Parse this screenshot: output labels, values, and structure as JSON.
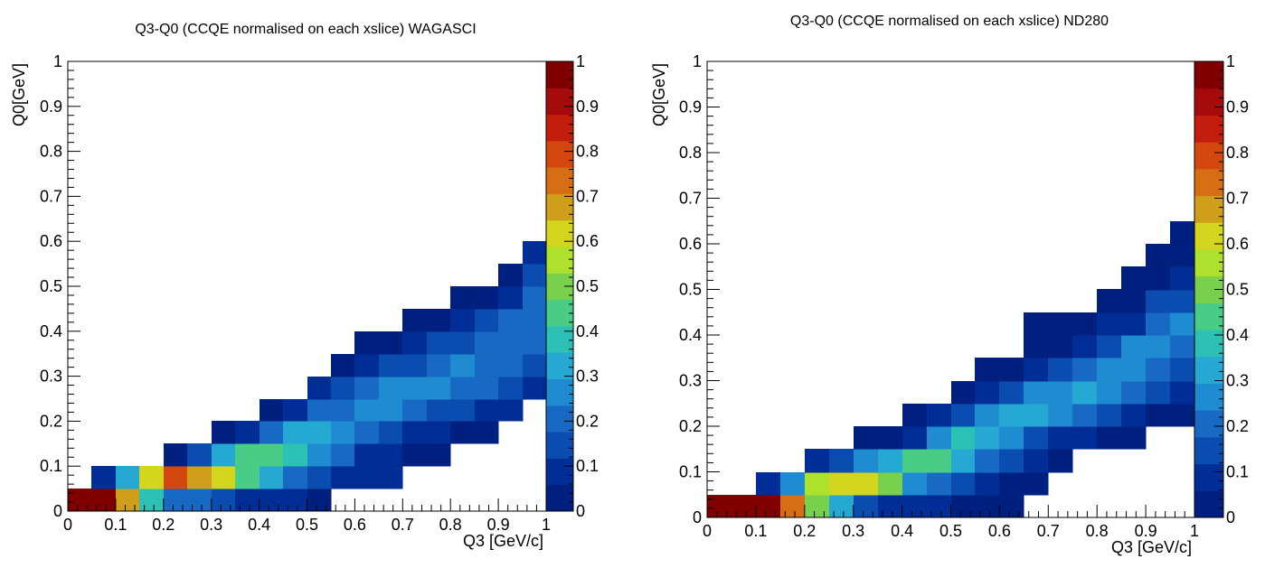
{
  "chart_data": [
    {
      "type": "heatmap",
      "title": "Q3-Q0 (CCQE normalised on each xslice) WAGASCI",
      "xlabel": "Q3 [GeV/c]",
      "ylabel": "Q0[GeV]",
      "xlim": [
        0,
        1
      ],
      "ylim": [
        0,
        1
      ],
      "x_ticks": [
        "0",
        "0.1",
        "0.2",
        "0.3",
        "0.4",
        "0.5",
        "0.6",
        "0.7",
        "0.8",
        "0.9",
        "1"
      ],
      "y_ticks": [
        "0",
        "0.1",
        "0.2",
        "0.3",
        "0.4",
        "0.5",
        "0.6",
        "0.7",
        "0.8",
        "0.9",
        "1"
      ],
      "colorbar_ticks": [
        "0",
        "0.1",
        "0.2",
        "0.3",
        "0.4",
        "0.5",
        "0.6",
        "0.7",
        "0.8",
        "0.9",
        "1"
      ],
      "zlim": [
        0,
        1
      ],
      "bin_width": 0.05,
      "grid": false,
      "colorbar": "right",
      "columns": [
        {
          "x": 0.0,
          "y_start": 0.0,
          "values": [
            0.98
          ]
        },
        {
          "x": 0.05,
          "y_start": 0.0,
          "values": [
            0.98,
            0.06
          ]
        },
        {
          "x": 0.1,
          "y_start": 0.0,
          "values": [
            0.7,
            0.33
          ]
        },
        {
          "x": 0.15,
          "y_start": 0.0,
          "values": [
            0.4,
            0.62
          ]
        },
        {
          "x": 0.2,
          "y_start": 0.0,
          "values": [
            0.22,
            0.78,
            0.04
          ]
        },
        {
          "x": 0.25,
          "y_start": 0.0,
          "values": [
            0.18,
            0.7,
            0.12
          ]
        },
        {
          "x": 0.3,
          "y_start": 0.0,
          "values": [
            0.12,
            0.62,
            0.33,
            0.04
          ]
        },
        {
          "x": 0.35,
          "y_start": 0.0,
          "values": [
            0.09,
            0.44,
            0.42,
            0.09
          ]
        },
        {
          "x": 0.4,
          "y_start": 0.0,
          "values": [
            0.08,
            0.33,
            0.42,
            0.2,
            0.04
          ]
        },
        {
          "x": 0.45,
          "y_start": 0.0,
          "values": [
            0.07,
            0.23,
            0.36,
            0.33,
            0.1
          ]
        },
        {
          "x": 0.5,
          "y_start": 0.0,
          "values": [
            0.05,
            0.14,
            0.27,
            0.33,
            0.2,
            0.07
          ]
        },
        {
          "x": 0.55,
          "y_start": 0.05,
          "values": [
            0.09,
            0.18,
            0.28,
            0.23,
            0.12,
            0.04
          ]
        },
        {
          "x": 0.6,
          "y_start": 0.05,
          "values": [
            0.06,
            0.1,
            0.21,
            0.28,
            0.21,
            0.08,
            0.03
          ]
        },
        {
          "x": 0.65,
          "y_start": 0.05,
          "values": [
            0.06,
            0.08,
            0.14,
            0.28,
            0.24,
            0.14,
            0.04
          ]
        },
        {
          "x": 0.7,
          "y_start": 0.1,
          "values": [
            0.04,
            0.1,
            0.22,
            0.27,
            0.17,
            0.09,
            0.03
          ]
        },
        {
          "x": 0.75,
          "y_start": 0.1,
          "values": [
            0.04,
            0.08,
            0.17,
            0.24,
            0.21,
            0.13,
            0.05
          ]
        },
        {
          "x": 0.8,
          "y_start": 0.15,
          "values": [
            0.04,
            0.12,
            0.2,
            0.24,
            0.16,
            0.08,
            0.03
          ]
        },
        {
          "x": 0.85,
          "y_start": 0.15,
          "values": [
            0.04,
            0.1,
            0.18,
            0.23,
            0.21,
            0.12,
            0.04
          ]
        },
        {
          "x": 0.9,
          "y_start": 0.2,
          "values": [
            0.06,
            0.13,
            0.18,
            0.22,
            0.2,
            0.08,
            0.04
          ]
        },
        {
          "x": 0.95,
          "y_start": 0.25,
          "values": [
            0.07,
            0.14,
            0.21,
            0.22,
            0.22,
            0.14,
            0.07
          ]
        }
      ]
    },
    {
      "type": "heatmap",
      "title": "Q3-Q0 (CCQE normalised on each xslice) ND280",
      "xlabel": "Q3 [GeV/c]",
      "ylabel": "Q0[GeV]",
      "xlim": [
        0,
        1
      ],
      "ylim": [
        0,
        1
      ],
      "x_ticks": [
        "0",
        "0.1",
        "0.2",
        "0.3",
        "0.4",
        "0.5",
        "0.6",
        "0.7",
        "0.8",
        "0.9",
        "1"
      ],
      "y_ticks": [
        "0",
        "0.1",
        "0.2",
        "0.3",
        "0.4",
        "0.5",
        "0.6",
        "0.7",
        "0.8",
        "0.9",
        "1"
      ],
      "colorbar_ticks": [
        "0",
        "0.1",
        "0.2",
        "0.3",
        "0.4",
        "0.5",
        "0.6",
        "0.7",
        "0.8",
        "0.9",
        "1"
      ],
      "zlim": [
        0,
        1
      ],
      "bin_width": 0.05,
      "grid": false,
      "colorbar": "right",
      "columns": [
        {
          "x": 0.0,
          "y_start": 0.0,
          "values": [
            0.98
          ]
        },
        {
          "x": 0.05,
          "y_start": 0.0,
          "values": [
            0.98
          ]
        },
        {
          "x": 0.1,
          "y_start": 0.0,
          "values": [
            0.98,
            0.06
          ]
        },
        {
          "x": 0.15,
          "y_start": 0.0,
          "values": [
            0.74,
            0.26
          ]
        },
        {
          "x": 0.2,
          "y_start": 0.0,
          "values": [
            0.52,
            0.55,
            0.06
          ]
        },
        {
          "x": 0.25,
          "y_start": 0.0,
          "values": [
            0.33,
            0.63,
            0.12
          ]
        },
        {
          "x": 0.3,
          "y_start": 0.0,
          "values": [
            0.12,
            0.63,
            0.24,
            0.04
          ]
        },
        {
          "x": 0.35,
          "y_start": 0.0,
          "values": [
            0.09,
            0.52,
            0.33,
            0.04
          ]
        },
        {
          "x": 0.4,
          "y_start": 0.0,
          "values": [
            0.07,
            0.24,
            0.45,
            0.09,
            0.04
          ]
        },
        {
          "x": 0.45,
          "y_start": 0.0,
          "values": [
            0.06,
            0.18,
            0.45,
            0.29,
            0.06
          ]
        },
        {
          "x": 0.5,
          "y_start": 0.0,
          "values": [
            0.05,
            0.12,
            0.33,
            0.38,
            0.14,
            0.04
          ]
        },
        {
          "x": 0.55,
          "y_start": 0.0,
          "values": [
            0.05,
            0.07,
            0.22,
            0.33,
            0.24,
            0.07,
            0.04
          ]
        },
        {
          "x": 0.6,
          "y_start": 0.0,
          "values": [
            0.05,
            0.05,
            0.17,
            0.29,
            0.33,
            0.14,
            0.04
          ]
        },
        {
          "x": 0.65,
          "y_start": 0.05,
          "values": [
            0.05,
            0.07,
            0.14,
            0.33,
            0.24,
            0.1,
            0.04,
            0.03
          ]
        },
        {
          "x": 0.7,
          "y_start": 0.1,
          "values": [
            0.05,
            0.1,
            0.24,
            0.29,
            0.14,
            0.05,
            0.03
          ]
        },
        {
          "x": 0.75,
          "y_start": 0.15,
          "values": [
            0.08,
            0.19,
            0.31,
            0.19,
            0.1,
            0.04
          ]
        },
        {
          "x": 0.8,
          "y_start": 0.15,
          "values": [
            0.05,
            0.14,
            0.24,
            0.26,
            0.17,
            0.07,
            0.03
          ]
        },
        {
          "x": 0.85,
          "y_start": 0.15,
          "values": [
            0.04,
            0.09,
            0.19,
            0.26,
            0.24,
            0.1,
            0.04,
            0.03
          ]
        },
        {
          "x": 0.9,
          "y_start": 0.2,
          "values": [
            0.05,
            0.14,
            0.2,
            0.26,
            0.21,
            0.12,
            0.05,
            0.03
          ]
        },
        {
          "x": 0.95,
          "y_start": 0.2,
          "values": [
            0.05,
            0.09,
            0.17,
            0.21,
            0.24,
            0.17,
            0.1,
            0.04,
            0.03
          ]
        }
      ]
    }
  ]
}
